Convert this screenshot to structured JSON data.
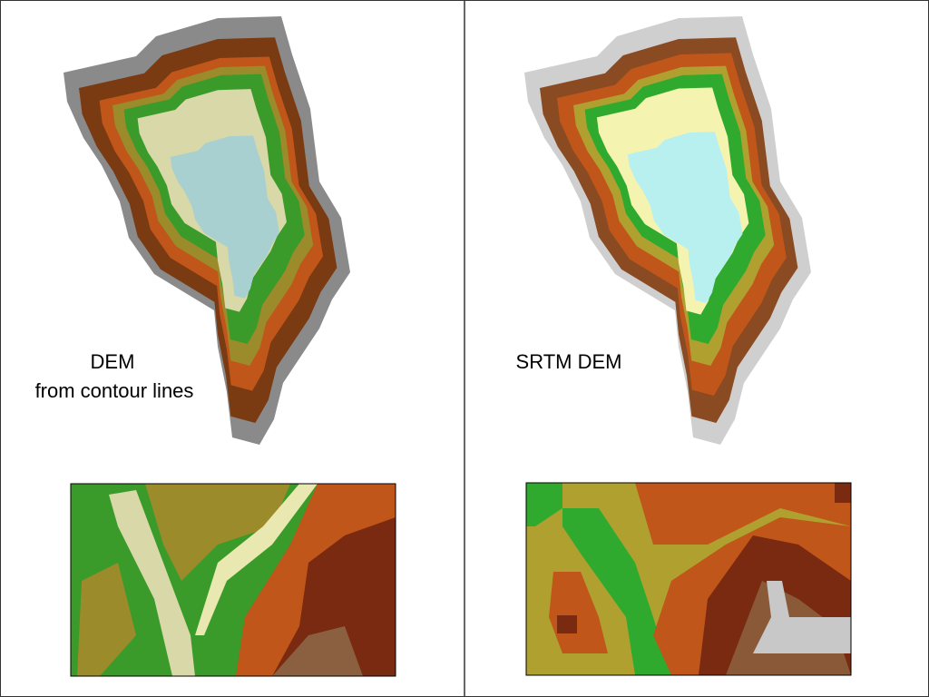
{
  "left_panel": {
    "caption_line1": "DEM",
    "caption_line2": "from contour lines"
  },
  "right_panel": {
    "caption": "SRTM DEM"
  }
}
